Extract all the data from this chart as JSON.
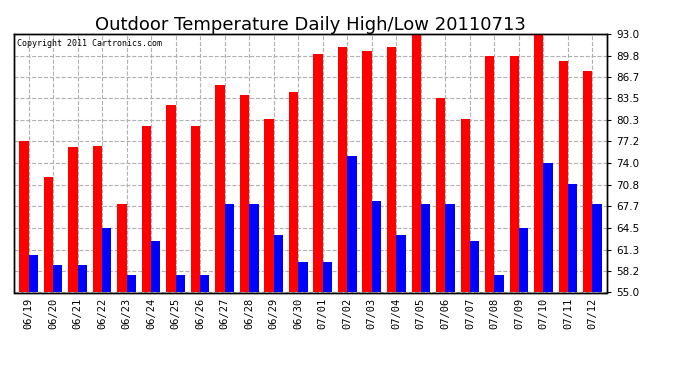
{
  "title": "Outdoor Temperature Daily High/Low 20110713",
  "copyright": "Copyright 2011 Cartronics.com",
  "dates": [
    "06/19",
    "06/20",
    "06/21",
    "06/22",
    "06/23",
    "06/24",
    "06/25",
    "06/26",
    "06/27",
    "06/28",
    "06/29",
    "06/30",
    "07/01",
    "07/02",
    "07/03",
    "07/04",
    "07/05",
    "07/06",
    "07/07",
    "07/08",
    "07/09",
    "07/10",
    "07/11",
    "07/12"
  ],
  "highs": [
    77.2,
    72.0,
    76.3,
    76.5,
    68.0,
    79.5,
    82.5,
    79.5,
    85.5,
    84.0,
    80.5,
    84.5,
    90.0,
    91.0,
    90.5,
    91.0,
    93.0,
    83.5,
    80.5,
    89.8,
    89.8,
    93.0,
    89.0,
    87.5
  ],
  "lows": [
    60.5,
    59.0,
    59.0,
    64.5,
    57.5,
    62.5,
    57.5,
    57.5,
    68.0,
    68.0,
    63.5,
    59.5,
    59.5,
    75.0,
    68.5,
    63.5,
    68.0,
    68.0,
    62.5,
    57.5,
    64.5,
    74.0,
    71.0,
    68.0
  ],
  "high_color": "#ff0000",
  "low_color": "#0000ff",
  "bg_color": "#ffffff",
  "grid_color": "#b0b0b0",
  "ylim": [
    55.0,
    93.0
  ],
  "yticks": [
    55.0,
    58.2,
    61.3,
    64.5,
    67.7,
    70.8,
    74.0,
    77.2,
    80.3,
    83.5,
    86.7,
    89.8,
    93.0
  ],
  "title_fontsize": 13,
  "tick_fontsize": 7.5,
  "bar_width": 0.38
}
